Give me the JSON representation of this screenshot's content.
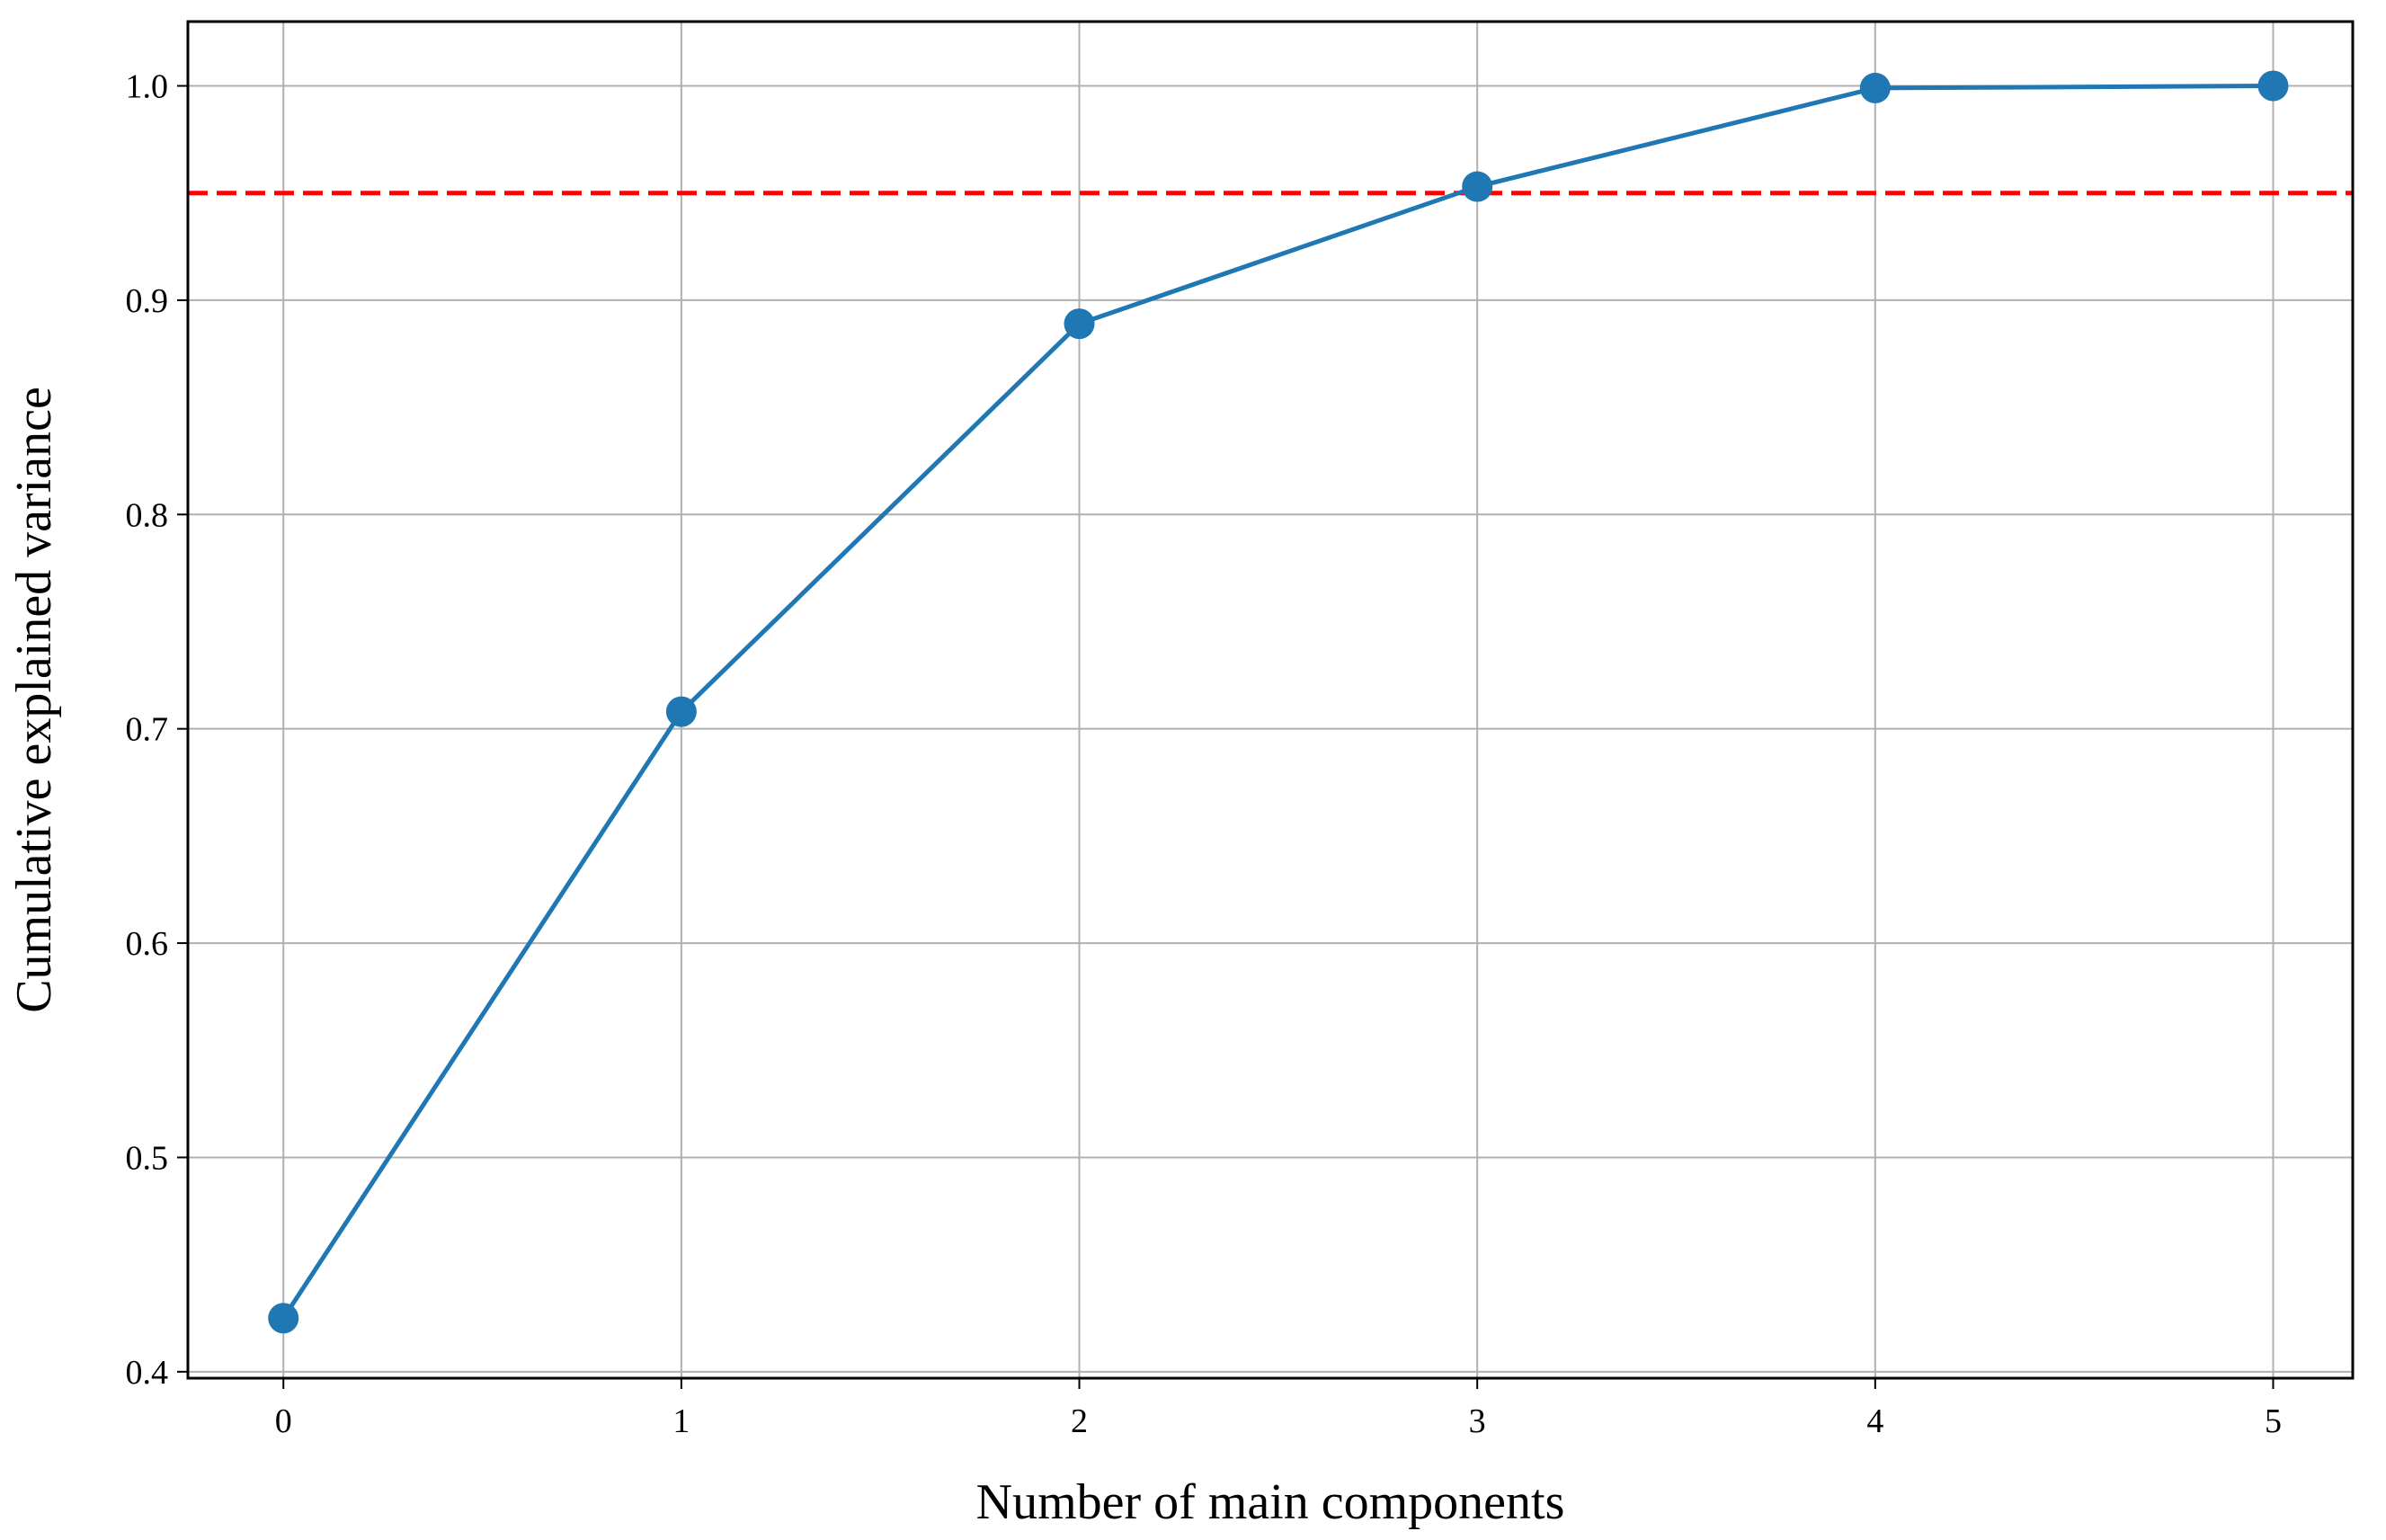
{
  "chart_data": {
    "type": "line",
    "title": "",
    "xlabel": "Number of main components",
    "ylabel": "Cumulative explained variance",
    "x": [
      0,
      1,
      2,
      3,
      4,
      5
    ],
    "series": [
      {
        "values": [
          0.425,
          0.708,
          0.889,
          0.953,
          0.999,
          1.0
        ],
        "color": "#1f77b4",
        "marker": "circle"
      }
    ],
    "reference_line": {
      "orientation": "horizontal",
      "y": 0.95,
      "color": "#ff0000",
      "style": "dashed"
    },
    "xlim": [
      -0.24,
      5.2
    ],
    "ylim": [
      0.397,
      1.03
    ],
    "xticks": [
      0,
      1,
      2,
      3,
      4,
      5
    ],
    "xtick_labels": [
      "0",
      "1",
      "2",
      "3",
      "4",
      "5"
    ],
    "yticks": [
      0.4,
      0.5,
      0.6,
      0.7,
      0.8,
      0.9,
      1.0
    ],
    "ytick_labels": [
      "0.4",
      "0.5",
      "0.6",
      "0.7",
      "0.8",
      "0.9",
      "1.0"
    ],
    "grid": true,
    "legend": "none"
  }
}
